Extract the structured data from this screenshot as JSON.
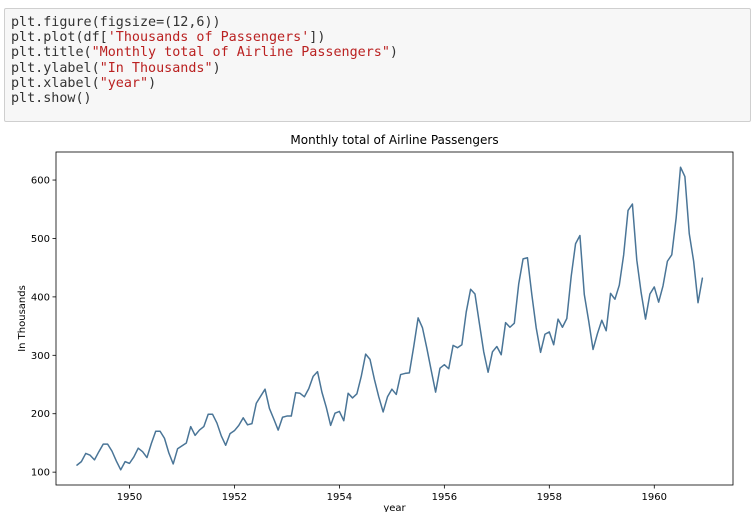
{
  "code_cell": {
    "lines": [
      [
        {
          "t": "plt.figure(figsize=(12,6))",
          "c": "plain"
        }
      ],
      [
        {
          "t": "plt.plot(df[",
          "c": "plain"
        },
        {
          "t": "'Thousands of Passengers'",
          "c": "str"
        },
        {
          "t": "])",
          "c": "plain"
        }
      ],
      [
        {
          "t": "plt.title(",
          "c": "plain"
        },
        {
          "t": "\"Monthly total of Airline Passengers\"",
          "c": "str"
        },
        {
          "t": ")",
          "c": "plain"
        }
      ],
      [
        {
          "t": "plt.ylabel(",
          "c": "plain"
        },
        {
          "t": "\"In Thousands\"",
          "c": "str"
        },
        {
          "t": ")",
          "c": "plain"
        }
      ],
      [
        {
          "t": "plt.xlabel(",
          "c": "plain"
        },
        {
          "t": "\"year\"",
          "c": "str"
        },
        {
          "t": ")",
          "c": "plain"
        }
      ],
      [
        {
          "t": "plt.show()",
          "c": "plain"
        }
      ]
    ]
  },
  "colors": {
    "line": "#4a7597",
    "code_bg": "#f7f7f7",
    "string": "#ba2121"
  },
  "chart_data": {
    "type": "line",
    "title": "Monthly total of Airline Passengers",
    "xlabel": "year",
    "ylabel": "In Thousands",
    "xlim": [
      1948.6,
      1961.5
    ],
    "ylim": [
      78,
      648
    ],
    "xticks": [
      1950,
      1952,
      1954,
      1956,
      1958,
      1960
    ],
    "yticks": [
      100,
      200,
      300,
      400,
      500,
      600
    ],
    "grid": false,
    "legend": "none",
    "series": [
      {
        "x_start": 1949.0,
        "x_step": 0.0833333,
        "values": [
          112,
          118,
          132,
          129,
          121,
          135,
          148,
          148,
          136,
          119,
          104,
          118,
          115,
          126,
          141,
          135,
          125,
          149,
          170,
          170,
          158,
          133,
          114,
          140,
          145,
          150,
          178,
          163,
          172,
          178,
          199,
          199,
          184,
          162,
          146,
          166,
          171,
          180,
          193,
          181,
          183,
          218,
          230,
          242,
          209,
          191,
          172,
          194,
          196,
          196,
          236,
          235,
          229,
          243,
          264,
          272,
          237,
          211,
          180,
          201,
          204,
          188,
          235,
          227,
          234,
          264,
          302,
          293,
          259,
          229,
          203,
          229,
          242,
          233,
          267,
          269,
          270,
          315,
          364,
          347,
          312,
          274,
          237,
          278,
          284,
          277,
          317,
          313,
          318,
          374,
          413,
          405,
          355,
          306,
          271,
          306,
          315,
          301,
          356,
          348,
          355,
          422,
          465,
          467,
          404,
          347,
          305,
          336,
          340,
          318,
          362,
          348,
          363,
          435,
          491,
          505,
          404,
          359,
          310,
          337,
          360,
          342,
          406,
          396,
          420,
          472,
          548,
          559,
          463,
          407,
          362,
          405,
          417,
          391,
          419,
          461,
          472,
          535,
          622,
          606,
          508,
          461,
          390,
          432
        ]
      }
    ]
  }
}
